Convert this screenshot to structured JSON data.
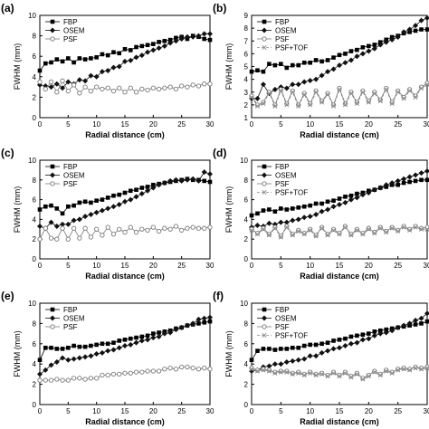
{
  "chart_data": [
    {
      "panel_label": "(a)",
      "type": "line",
      "xlabel": "Radial distance (cm)",
      "ylabel": "FWHM (mm)",
      "xlim": [
        0,
        30
      ],
      "ylim": [
        0,
        10
      ],
      "xticks": [
        0,
        5,
        10,
        15,
        20,
        25,
        30
      ],
      "yticks": [
        0,
        2,
        4,
        6,
        8,
        10
      ],
      "legend": [
        "FBP",
        "OSEM",
        "PSF"
      ],
      "legend_position": "top-left",
      "x": [
        0,
        1,
        2,
        3,
        4,
        5,
        6,
        7,
        8,
        9,
        10,
        11,
        12,
        13,
        14,
        15,
        16,
        17,
        18,
        19,
        20,
        21,
        22,
        23,
        24,
        25,
        26,
        27,
        28,
        29,
        30
      ],
      "series": [
        {
          "name": "FBP",
          "marker": "square",
          "values": [
            4.6,
            5.3,
            5.4,
            5.7,
            5.5,
            5.8,
            5.4,
            5.8,
            5.7,
            5.8,
            5.9,
            6.2,
            6.1,
            6.4,
            6.3,
            6.7,
            6.6,
            6.9,
            7.0,
            7.1,
            7.2,
            7.4,
            7.5,
            7.6,
            7.8,
            7.9,
            7.7,
            8.0,
            7.9,
            7.7,
            7.6
          ]
        },
        {
          "name": "OSEM",
          "marker": "diamond",
          "values": [
            3.2,
            3.1,
            3.0,
            3.3,
            2.9,
            3.5,
            3.3,
            3.7,
            3.6,
            4.1,
            4.0,
            4.5,
            4.6,
            4.9,
            5.0,
            5.5,
            5.6,
            5.9,
            6.1,
            6.4,
            6.6,
            6.8,
            7.0,
            7.3,
            7.5,
            7.7,
            7.9,
            7.9,
            8.0,
            8.2,
            8.2
          ]
        },
        {
          "name": "PSF",
          "marker": "circle-open",
          "values": [
            3.5,
            2.8,
            3.5,
            2.5,
            3.6,
            2.6,
            3.2,
            2.4,
            3.0,
            2.6,
            3.0,
            2.8,
            2.9,
            2.6,
            2.9,
            2.5,
            2.9,
            2.5,
            2.8,
            2.7,
            2.9,
            2.8,
            2.9,
            3.0,
            2.8,
            3.1,
            3.0,
            3.2,
            3.1,
            3.3,
            3.3
          ]
        }
      ]
    },
    {
      "panel_label": "(b)",
      "type": "line",
      "xlabel": "Radial distance (cm)",
      "ylabel": "FWHM (mm)",
      "xlim": [
        0,
        30
      ],
      "ylim": [
        1,
        9
      ],
      "xticks": [
        0,
        5,
        10,
        15,
        20,
        25,
        30
      ],
      "yticks": [
        1,
        2,
        3,
        4,
        5,
        6,
        7,
        8,
        9
      ],
      "legend": [
        "FBP",
        "OSEM",
        "PSF",
        "PSF+TOF"
      ],
      "legend_position": "top-left",
      "x": [
        0,
        1,
        2,
        3,
        4,
        5,
        6,
        7,
        8,
        9,
        10,
        11,
        12,
        13,
        14,
        15,
        16,
        17,
        18,
        19,
        20,
        21,
        22,
        23,
        24,
        25,
        26,
        27,
        28,
        29,
        30
      ],
      "series": [
        {
          "name": "FBP",
          "marker": "square",
          "values": [
            4.6,
            4.7,
            4.6,
            5.2,
            5.1,
            5.2,
            4.9,
            5.1,
            5.1,
            5.3,
            5.3,
            5.5,
            5.4,
            5.5,
            5.7,
            5.9,
            6.0,
            6.2,
            6.3,
            6.5,
            6.6,
            6.7,
            6.9,
            7.1,
            7.3,
            7.4,
            7.6,
            7.7,
            7.8,
            7.9,
            7.9
          ]
        },
        {
          "name": "OSEM",
          "marker": "diamond",
          "values": [
            2.5,
            2.5,
            3.6,
            2.9,
            3.2,
            3.4,
            3.3,
            3.6,
            3.6,
            3.8,
            3.9,
            4.0,
            4.3,
            4.6,
            4.8,
            5.1,
            5.3,
            5.5,
            5.8,
            6.0,
            6.2,
            6.4,
            6.7,
            6.9,
            7.1,
            7.3,
            7.7,
            7.9,
            8.2,
            8.6,
            8.8
          ]
        },
        {
          "name": "PSF",
          "marker": "circle-open",
          "values": [
            2.7,
            2.0,
            2.2,
            3.0,
            2.0,
            3.2,
            2.1,
            3.1,
            2.0,
            2.9,
            2.1,
            3.1,
            2.3,
            2.9,
            2.0,
            3.3,
            2.1,
            3.0,
            2.2,
            3.1,
            2.3,
            3.0,
            2.4,
            3.3,
            2.2,
            3.1,
            2.6,
            3.2,
            2.7,
            3.4,
            3.7
          ]
        },
        {
          "name": "PSF+TOF",
          "marker": "x",
          "values": [
            2.6,
            1.9,
            2.1,
            2.9,
            1.9,
            3.1,
            2.0,
            3.0,
            1.9,
            2.8,
            2.0,
            3.0,
            2.2,
            2.8,
            1.9,
            3.2,
            2.0,
            2.9,
            2.1,
            3.0,
            2.2,
            2.9,
            2.3,
            3.2,
            2.1,
            3.0,
            2.5,
            3.1,
            2.6,
            3.3,
            3.6
          ]
        }
      ]
    },
    {
      "panel_label": "(c)",
      "type": "line",
      "xlabel": "Radial distance (cm)",
      "ylabel": "FWHM (mm)",
      "xlim": [
        0,
        30
      ],
      "ylim": [
        0,
        10
      ],
      "xticks": [
        0,
        5,
        10,
        15,
        20,
        25,
        30
      ],
      "yticks": [
        0,
        2,
        4,
        6,
        8,
        10
      ],
      "legend": [
        "FBP",
        "OSEM",
        "PSF"
      ],
      "legend_position": "top-left",
      "x": [
        0,
        1,
        2,
        3,
        4,
        5,
        6,
        7,
        8,
        9,
        10,
        11,
        12,
        13,
        14,
        15,
        16,
        17,
        18,
        19,
        20,
        21,
        22,
        23,
        24,
        25,
        26,
        27,
        28,
        29,
        30
      ],
      "series": [
        {
          "name": "FBP",
          "marker": "square",
          "values": [
            5.0,
            5.3,
            5.4,
            5.1,
            4.6,
            5.3,
            5.4,
            5.7,
            5.8,
            5.7,
            5.9,
            6.0,
            6.2,
            6.4,
            6.5,
            6.7,
            6.9,
            7.0,
            7.2,
            7.3,
            7.5,
            7.6,
            7.7,
            7.8,
            7.9,
            8.0,
            8.1,
            8.0,
            8.0,
            7.9,
            7.8
          ]
        },
        {
          "name": "OSEM",
          "marker": "diamond",
          "values": [
            3.3,
            3.1,
            3.7,
            3.3,
            3.5,
            3.5,
            3.9,
            4.0,
            4.3,
            4.5,
            4.7,
            4.9,
            5.1,
            5.3,
            5.5,
            5.8,
            6.0,
            6.3,
            6.6,
            6.9,
            7.2,
            7.5,
            7.7,
            7.9,
            8.0,
            7.9,
            8.0,
            8.1,
            7.9,
            8.8,
            8.6
          ]
        },
        {
          "name": "PSF",
          "marker": "circle-open",
          "values": [
            2.0,
            3.1,
            2.1,
            2.0,
            3.1,
            2.0,
            3.1,
            2.1,
            3.1,
            2.2,
            3.0,
            2.4,
            3.2,
            2.5,
            3.0,
            2.7,
            3.2,
            2.7,
            3.0,
            2.9,
            3.2,
            2.8,
            3.1,
            3.0,
            3.3,
            2.9,
            3.1,
            3.2,
            3.1,
            3.1,
            3.2
          ]
        }
      ]
    },
    {
      "panel_label": "(d)",
      "type": "line",
      "xlabel": "Radial distance (cm)",
      "ylabel": "FWHM (mm)",
      "xlim": [
        0,
        30
      ],
      "ylim": [
        0,
        10
      ],
      "xticks": [
        0,
        5,
        10,
        15,
        20,
        25,
        30
      ],
      "yticks": [
        0,
        2,
        4,
        6,
        8,
        10
      ],
      "legend": [
        "FBP",
        "OSEM",
        "PSF",
        "PSF+TOF"
      ],
      "legend_position": "top-left",
      "x": [
        0,
        1,
        2,
        3,
        4,
        5,
        6,
        7,
        8,
        9,
        10,
        11,
        12,
        13,
        14,
        15,
        16,
        17,
        18,
        19,
        20,
        21,
        22,
        23,
        24,
        25,
        26,
        27,
        28,
        29,
        30
      ],
      "series": [
        {
          "name": "FBP",
          "marker": "square",
          "values": [
            4.4,
            4.6,
            4.9,
            5.0,
            4.8,
            5.1,
            5.0,
            5.1,
            5.2,
            5.3,
            5.4,
            5.6,
            5.6,
            5.8,
            5.9,
            6.1,
            6.3,
            6.4,
            6.6,
            6.7,
            6.9,
            7.0,
            7.2,
            7.3,
            7.5,
            7.5,
            7.7,
            7.8,
            7.9,
            8.0,
            8.0
          ]
        },
        {
          "name": "OSEM",
          "marker": "diamond",
          "values": [
            3.2,
            3.4,
            3.3,
            3.6,
            3.5,
            3.7,
            3.7,
            3.9,
            4.0,
            4.2,
            4.3,
            4.5,
            4.8,
            5.0,
            5.3,
            5.5,
            5.7,
            6.0,
            6.2,
            6.5,
            6.7,
            7.0,
            7.2,
            7.5,
            7.7,
            7.9,
            8.1,
            8.3,
            8.5,
            8.7,
            8.9
          ]
        },
        {
          "name": "PSF",
          "marker": "circle-open",
          "values": [
            3.0,
            2.6,
            3.1,
            2.5,
            3.2,
            2.3,
            3.3,
            2.5,
            2.9,
            2.6,
            3.0,
            2.4,
            3.2,
            2.5,
            3.0,
            2.6,
            3.3,
            2.5,
            3.0,
            2.6,
            3.1,
            2.7,
            3.2,
            2.8,
            3.2,
            2.9,
            3.3,
            3.0,
            3.3,
            3.1,
            3.2
          ]
        },
        {
          "name": "PSF+TOF",
          "marker": "x",
          "values": [
            2.9,
            2.5,
            3.0,
            2.4,
            3.1,
            2.2,
            3.2,
            2.4,
            2.8,
            2.5,
            2.9,
            2.3,
            3.1,
            2.4,
            2.9,
            2.5,
            3.2,
            2.4,
            2.9,
            2.5,
            3.0,
            2.6,
            3.1,
            2.7,
            3.1,
            2.8,
            3.2,
            2.9,
            3.2,
            3.0,
            3.0
          ]
        }
      ]
    },
    {
      "panel_label": "(e)",
      "type": "line",
      "xlabel": "Radial distance (cm)",
      "ylabel": "FWHM (mm)",
      "xlim": [
        0,
        30
      ],
      "ylim": [
        0,
        10
      ],
      "xticks": [
        0,
        5,
        10,
        15,
        20,
        25,
        30
      ],
      "yticks": [
        0,
        2,
        4,
        6,
        8,
        10
      ],
      "legend": [
        "FBP",
        "OSEM",
        "PSF"
      ],
      "legend_position": "top-left",
      "x": [
        0,
        1,
        2,
        3,
        4,
        5,
        6,
        7,
        8,
        9,
        10,
        11,
        12,
        13,
        14,
        15,
        16,
        17,
        18,
        19,
        20,
        21,
        22,
        23,
        24,
        25,
        26,
        27,
        28,
        29,
        30
      ],
      "series": [
        {
          "name": "FBP",
          "marker": "square",
          "values": [
            4.4,
            5.6,
            5.6,
            5.5,
            5.5,
            5.6,
            5.8,
            5.7,
            5.7,
            5.8,
            5.9,
            6.0,
            6.0,
            6.1,
            6.3,
            6.4,
            6.5,
            6.6,
            6.7,
            6.8,
            7.0,
            7.1,
            7.2,
            7.3,
            7.5,
            7.6,
            7.8,
            7.9,
            8.0,
            8.1,
            8.2
          ]
        },
        {
          "name": "OSEM",
          "marker": "diamond",
          "values": [
            3.0,
            3.4,
            3.9,
            4.2,
            4.6,
            4.4,
            4.5,
            4.6,
            4.7,
            4.8,
            5.0,
            5.1,
            5.3,
            5.4,
            5.6,
            5.8,
            5.9,
            6.1,
            6.3,
            6.4,
            6.6,
            6.7,
            7.0,
            7.1,
            7.4,
            7.6,
            7.8,
            8.0,
            8.4,
            8.5,
            8.6
          ]
        },
        {
          "name": "PSF",
          "marker": "circle-open",
          "values": [
            2.4,
            2.4,
            2.4,
            2.5,
            2.4,
            2.4,
            2.6,
            2.6,
            2.5,
            2.6,
            2.6,
            2.9,
            2.9,
            3.0,
            3.0,
            3.1,
            3.1,
            3.2,
            3.2,
            3.3,
            3.3,
            3.3,
            3.5,
            3.6,
            3.5,
            3.7,
            3.7,
            3.6,
            3.5,
            3.6,
            3.5
          ]
        }
      ]
    },
    {
      "panel_label": "(f)",
      "type": "line",
      "xlabel": "Radial distance (cm)",
      "ylabel": "FWHM (mm)",
      "xlim": [
        0,
        30
      ],
      "ylim": [
        0,
        10
      ],
      "xticks": [
        0,
        5,
        10,
        15,
        20,
        25,
        30
      ],
      "yticks": [
        0,
        2,
        4,
        6,
        8,
        10
      ],
      "legend": [
        "FBP",
        "OSEM",
        "PSF",
        "PSF+TOF"
      ],
      "legend_position": "top-left",
      "x": [
        0,
        1,
        2,
        3,
        4,
        5,
        6,
        7,
        8,
        9,
        10,
        11,
        12,
        13,
        14,
        15,
        16,
        17,
        18,
        19,
        20,
        21,
        22,
        23,
        24,
        25,
        26,
        27,
        28,
        29,
        30
      ],
      "series": [
        {
          "name": "FBP",
          "marker": "square",
          "values": [
            4.4,
            5.3,
            5.5,
            5.5,
            5.4,
            5.5,
            5.5,
            5.6,
            5.6,
            5.8,
            5.9,
            5.9,
            6.0,
            6.1,
            6.3,
            6.4,
            6.5,
            6.7,
            6.8,
            6.9,
            7.0,
            7.2,
            7.3,
            7.4,
            7.5,
            7.6,
            7.7,
            7.8,
            7.9,
            8.0,
            8.2
          ]
        },
        {
          "name": "OSEM",
          "marker": "diamond",
          "values": [
            3.3,
            3.4,
            3.7,
            3.8,
            4.0,
            4.0,
            4.2,
            4.3,
            4.4,
            4.5,
            4.8,
            4.8,
            5.1,
            5.3,
            5.5,
            5.6,
            5.8,
            6.0,
            6.1,
            6.4,
            6.5,
            6.8,
            7.0,
            7.1,
            7.3,
            7.6,
            7.8,
            8.0,
            8.3,
            8.5,
            9.0
          ]
        },
        {
          "name": "PSF",
          "marker": "circle-open",
          "values": [
            3.6,
            3.4,
            3.5,
            3.4,
            3.2,
            3.3,
            3.3,
            3.1,
            3.2,
            3.0,
            3.2,
            3.0,
            3.1,
            2.9,
            3.2,
            2.9,
            3.2,
            2.8,
            3.1,
            2.6,
            2.9,
            3.3,
            3.0,
            3.4,
            3.2,
            3.5,
            3.6,
            3.5,
            3.7,
            3.6,
            3.7
          ]
        },
        {
          "name": "PSF+TOF",
          "marker": "x",
          "values": [
            3.5,
            3.3,
            3.4,
            3.3,
            3.1,
            3.2,
            3.2,
            3.0,
            3.1,
            2.9,
            3.1,
            2.9,
            3.0,
            2.8,
            3.1,
            2.8,
            3.1,
            2.7,
            3.0,
            2.5,
            2.8,
            3.2,
            2.9,
            3.3,
            3.1,
            3.4,
            3.5,
            3.4,
            3.6,
            3.5,
            3.6
          ]
        }
      ]
    }
  ]
}
